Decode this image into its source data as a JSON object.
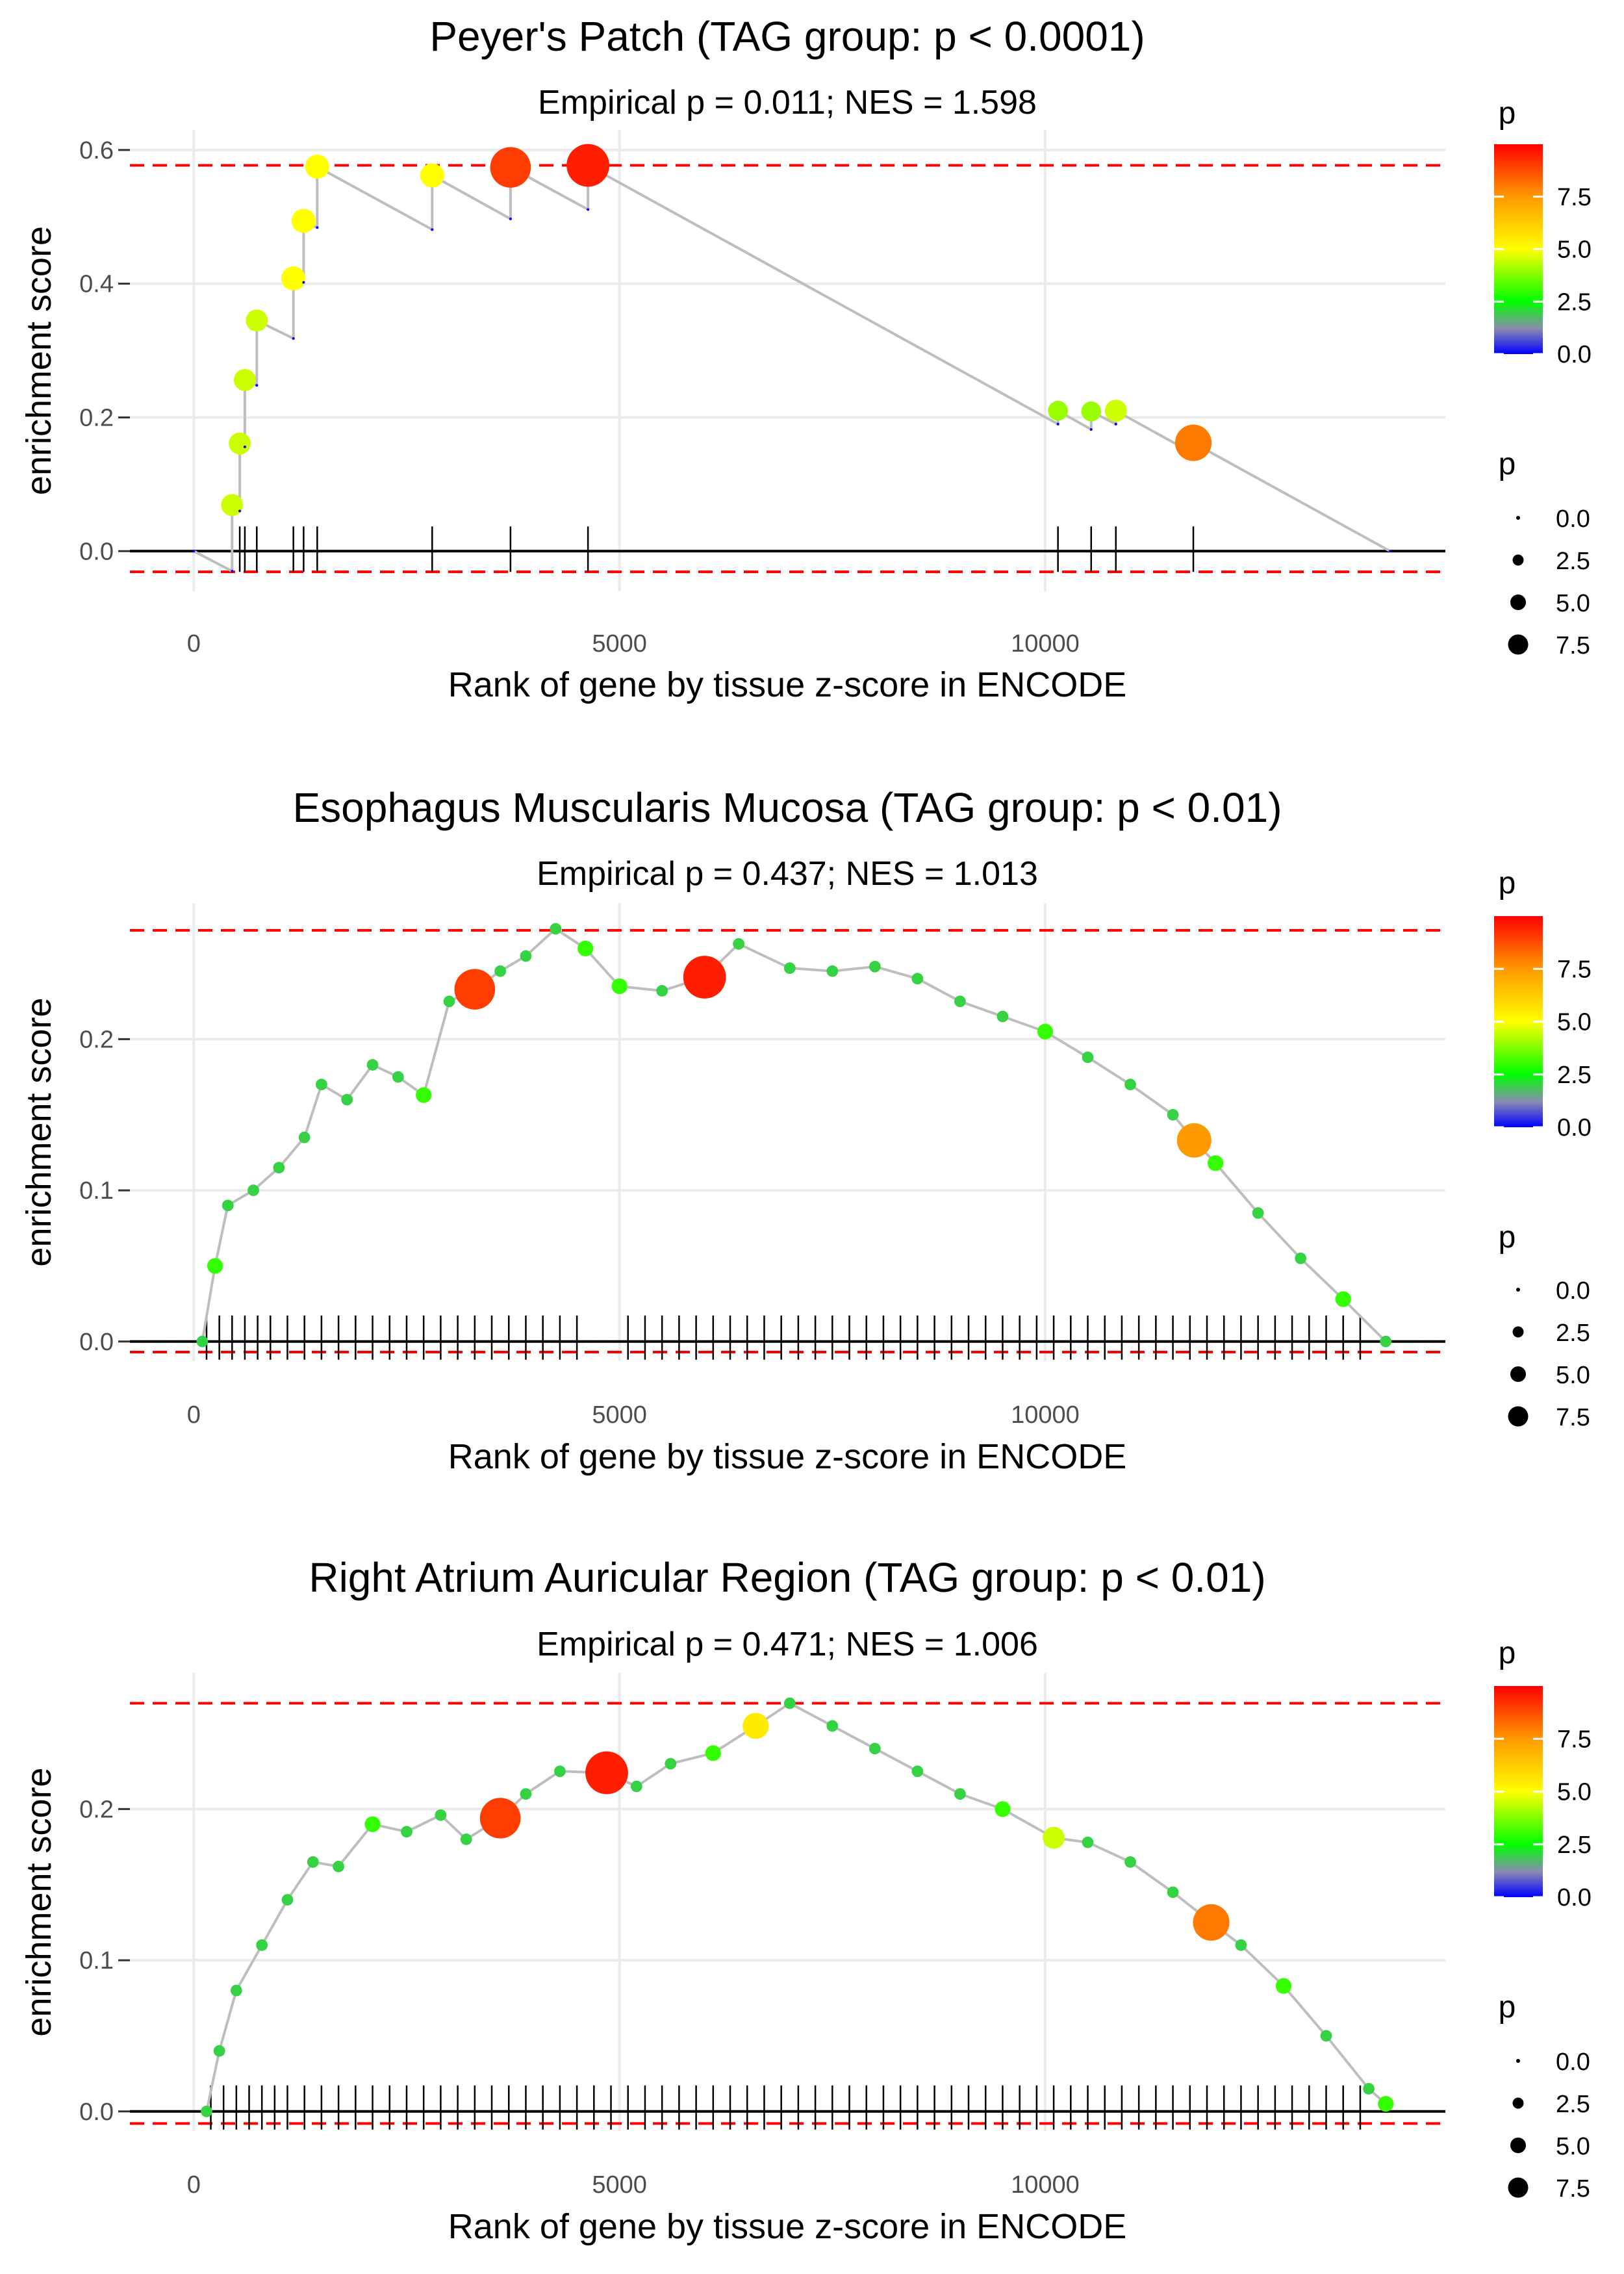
{
  "x_axis_label": "Rank of gene by tissue z-score in ENCODE",
  "y_axis_label": "enrichment score",
  "legend": {
    "color_title": "p",
    "size_title": "p",
    "size_labels": [
      "0.0",
      "2.5",
      "5.0",
      "7.5"
    ],
    "colors": {
      "low": "#0000ff",
      "mid_low": "#8a8ab0",
      "mid": "#00ff00",
      "mid_high": "#ffff00",
      "high_mid": "#ff9900",
      "high": "#ff0000"
    }
  },
  "styles": {
    "line_color": "#bebebe",
    "threshold_color": "#ff0000",
    "barcode_color": "#000000",
    "grid_color": "#ebebeb"
  },
  "chart_data": [
    {
      "type": "line",
      "title": "Peyer's Patch (TAG group: p < 0.0001)",
      "subtitle": "Empirical p = 0.011; NES = 1.598",
      "xlabel": "Rank of gene by tissue z-score in ENCODE",
      "ylabel": "enrichment score",
      "xlim": [
        -750,
        14700
      ],
      "ylim": [
        -0.06,
        0.63
      ],
      "x_ticks": [
        0,
        5000,
        10000
      ],
      "x_tick_labels": [
        "0",
        "5000",
        "10000"
      ],
      "y_ticks": [
        0.0,
        0.2,
        0.4,
        0.6
      ],
      "y_tick_labels": [
        "0.0",
        "0.2",
        "0.4",
        "0.6"
      ],
      "color_ticks": [
        0.0,
        2.5,
        5.0,
        7.5
      ],
      "color_tick_labels": [
        "0.0",
        "2.5",
        "5.0",
        "7.5"
      ],
      "color_max": 10,
      "dense": false,
      "thresholds": [
        0.577,
        -0.031
      ],
      "points": [
        {
          "x": 0,
          "y": 0.0,
          "p": 0
        },
        {
          "x": 450,
          "y": -0.03,
          "p": 0
        },
        {
          "x": 450,
          "y": 0.069,
          "p": 4.5
        },
        {
          "x": 540,
          "y": 0.06,
          "p": 0
        },
        {
          "x": 540,
          "y": 0.161,
          "p": 4.5
        },
        {
          "x": 600,
          "y": 0.156,
          "p": 0
        },
        {
          "x": 600,
          "y": 0.256,
          "p": 4.5
        },
        {
          "x": 740,
          "y": 0.248,
          "p": 0
        },
        {
          "x": 740,
          "y": 0.345,
          "p": 4.5
        },
        {
          "x": 1170,
          "y": 0.318,
          "p": 0
        },
        {
          "x": 1170,
          "y": 0.408,
          "p": 5.0
        },
        {
          "x": 1290,
          "y": 0.402,
          "p": 0
        },
        {
          "x": 1290,
          "y": 0.494,
          "p": 5.0
        },
        {
          "x": 1450,
          "y": 0.484,
          "p": 0
        },
        {
          "x": 1450,
          "y": 0.575,
          "p": 5.0
        },
        {
          "x": 2800,
          "y": 0.481,
          "p": 0
        },
        {
          "x": 2800,
          "y": 0.562,
          "p": 5.0
        },
        {
          "x": 3720,
          "y": 0.497,
          "p": 0
        },
        {
          "x": 3720,
          "y": 0.574,
          "p": 9.0
        },
        {
          "x": 4630,
          "y": 0.511,
          "p": 0
        },
        {
          "x": 4630,
          "y": 0.577,
          "p": 9.5
        },
        {
          "x": 10150,
          "y": 0.19,
          "p": 0
        },
        {
          "x": 10150,
          "y": 0.21,
          "p": 4.0
        },
        {
          "x": 10540,
          "y": 0.182,
          "p": 0
        },
        {
          "x": 10540,
          "y": 0.209,
          "p": 4.0
        },
        {
          "x": 10830,
          "y": 0.19,
          "p": 0
        },
        {
          "x": 10830,
          "y": 0.21,
          "p": 4.5
        },
        {
          "x": 11740,
          "y": 0.146,
          "p": 0
        },
        {
          "x": 11740,
          "y": 0.162,
          "p": 8.0
        },
        {
          "x": 14050,
          "y": 0.0,
          "p": 0
        }
      ],
      "hits": [
        450,
        540,
        600,
        740,
        1170,
        1290,
        1450,
        2800,
        3720,
        4630,
        10150,
        10540,
        10830,
        11740
      ]
    },
    {
      "type": "line",
      "title": "Esophagus Muscularis Mucosa (TAG group: p < 0.01)",
      "subtitle": "Empirical p = 0.437; NES = 1.013",
      "xlabel": "Rank of gene by tissue z-score in ENCODE",
      "ylabel": "enrichment score",
      "xlim": [
        -750,
        14700
      ],
      "ylim": [
        -0.013,
        0.29
      ],
      "x_ticks": [
        0,
        5000,
        10000
      ],
      "x_tick_labels": [
        "0",
        "5000",
        "10000"
      ],
      "y_ticks": [
        0.0,
        0.1,
        0.2
      ],
      "y_tick_labels": [
        "0.0",
        "0.1",
        "0.2"
      ],
      "color_ticks": [
        0.0,
        2.5,
        5.0,
        7.5
      ],
      "color_tick_labels": [
        "0.0",
        "2.5",
        "5.0",
        "7.5"
      ],
      "color_max": 10,
      "dense": true,
      "thresholds": [
        0.272,
        -0.007
      ],
      "points": [
        {
          "x": 100,
          "y": 0.0,
          "p": 2
        },
        {
          "x": 250,
          "y": 0.05,
          "p": 3
        },
        {
          "x": 400,
          "y": 0.09,
          "p": 2
        },
        {
          "x": 700,
          "y": 0.1,
          "p": 2
        },
        {
          "x": 1000,
          "y": 0.115,
          "p": 2
        },
        {
          "x": 1300,
          "y": 0.135,
          "p": 2
        },
        {
          "x": 1500,
          "y": 0.17,
          "p": 2
        },
        {
          "x": 1800,
          "y": 0.16,
          "p": 2
        },
        {
          "x": 2100,
          "y": 0.183,
          "p": 2
        },
        {
          "x": 2400,
          "y": 0.175,
          "p": 2
        },
        {
          "x": 2700,
          "y": 0.163,
          "p": 3
        },
        {
          "x": 3000,
          "y": 0.225,
          "p": 2
        },
        {
          "x": 3300,
          "y": 0.233,
          "p": 9.0
        },
        {
          "x": 3600,
          "y": 0.245,
          "p": 2
        },
        {
          "x": 3900,
          "y": 0.255,
          "p": 2
        },
        {
          "x": 4250,
          "y": 0.273,
          "p": 2
        },
        {
          "x": 4600,
          "y": 0.26,
          "p": 3
        },
        {
          "x": 5000,
          "y": 0.235,
          "p": 3
        },
        {
          "x": 5500,
          "y": 0.232,
          "p": 2
        },
        {
          "x": 6000,
          "y": 0.241,
          "p": 9.5
        },
        {
          "x": 6400,
          "y": 0.263,
          "p": 2
        },
        {
          "x": 7000,
          "y": 0.247,
          "p": 2
        },
        {
          "x": 7500,
          "y": 0.245,
          "p": 2
        },
        {
          "x": 8000,
          "y": 0.248,
          "p": 2
        },
        {
          "x": 8500,
          "y": 0.24,
          "p": 2
        },
        {
          "x": 9000,
          "y": 0.225,
          "p": 2
        },
        {
          "x": 9500,
          "y": 0.215,
          "p": 2
        },
        {
          "x": 10000,
          "y": 0.205,
          "p": 3
        },
        {
          "x": 10500,
          "y": 0.188,
          "p": 2
        },
        {
          "x": 11000,
          "y": 0.17,
          "p": 2
        },
        {
          "x": 11500,
          "y": 0.15,
          "p": 2
        },
        {
          "x": 11750,
          "y": 0.133,
          "p": 7.5
        },
        {
          "x": 12000,
          "y": 0.118,
          "p": 3
        },
        {
          "x": 12500,
          "y": 0.085,
          "p": 2
        },
        {
          "x": 13000,
          "y": 0.055,
          "p": 2
        },
        {
          "x": 13500,
          "y": 0.028,
          "p": 3
        },
        {
          "x": 14000,
          "y": 0.0,
          "p": 2
        }
      ],
      "hits": [
        150,
        300,
        450,
        600,
        750,
        900,
        1100,
        1300,
        1500,
        1700,
        1900,
        2100,
        2300,
        2500,
        2700,
        2900,
        3100,
        3300,
        3500,
        3700,
        3900,
        4100,
        4300,
        4500,
        5100,
        5300,
        5500,
        5700,
        5900,
        6100,
        6300,
        6500,
        6700,
        6900,
        7100,
        7300,
        7500,
        7700,
        7900,
        8100,
        8300,
        8500,
        8700,
        8900,
        9100,
        9300,
        9500,
        9700,
        9900,
        10100,
        10300,
        10500,
        10700,
        10900,
        11100,
        11300,
        11500,
        11700,
        11900,
        12100,
        12300,
        12500,
        12700,
        12900,
        13100,
        13300,
        13500,
        13700
      ]
    },
    {
      "type": "line",
      "title": "Right Atrium Auricular Region (TAG group: p < 0.01)",
      "subtitle": "Empirical p = 0.471; NES = 1.006",
      "xlabel": "Rank of gene by tissue z-score in ENCODE",
      "ylabel": "enrichment score",
      "xlim": [
        -750,
        14700
      ],
      "ylim": [
        -0.013,
        0.29
      ],
      "x_ticks": [
        0,
        5000,
        10000
      ],
      "x_tick_labels": [
        "0",
        "5000",
        "10000"
      ],
      "y_ticks": [
        0.0,
        0.1,
        0.2
      ],
      "y_tick_labels": [
        "0.0",
        "0.1",
        "0.2"
      ],
      "color_ticks": [
        0.0,
        2.5,
        5.0,
        7.5
      ],
      "color_tick_labels": [
        "0.0",
        "2.5",
        "5.0",
        "7.5"
      ],
      "color_max": 10,
      "dense": true,
      "thresholds": [
        0.27,
        -0.008
      ],
      "points": [
        {
          "x": 150,
          "y": 0.0,
          "p": 2
        },
        {
          "x": 300,
          "y": 0.04,
          "p": 2
        },
        {
          "x": 500,
          "y": 0.08,
          "p": 2
        },
        {
          "x": 800,
          "y": 0.11,
          "p": 2
        },
        {
          "x": 1100,
          "y": 0.14,
          "p": 2
        },
        {
          "x": 1400,
          "y": 0.165,
          "p": 2
        },
        {
          "x": 1700,
          "y": 0.162,
          "p": 2
        },
        {
          "x": 2100,
          "y": 0.19,
          "p": 3
        },
        {
          "x": 2500,
          "y": 0.185,
          "p": 2
        },
        {
          "x": 2900,
          "y": 0.196,
          "p": 2
        },
        {
          "x": 3200,
          "y": 0.18,
          "p": 2
        },
        {
          "x": 3600,
          "y": 0.194,
          "p": 9.0
        },
        {
          "x": 3900,
          "y": 0.21,
          "p": 2
        },
        {
          "x": 4300,
          "y": 0.225,
          "p": 2
        },
        {
          "x": 4850,
          "y": 0.224,
          "p": 9.5
        },
        {
          "x": 5200,
          "y": 0.215,
          "p": 2
        },
        {
          "x": 5600,
          "y": 0.23,
          "p": 2
        },
        {
          "x": 6100,
          "y": 0.237,
          "p": 3
        },
        {
          "x": 6600,
          "y": 0.255,
          "p": 5.5
        },
        {
          "x": 7000,
          "y": 0.27,
          "p": 2
        },
        {
          "x": 7500,
          "y": 0.255,
          "p": 2
        },
        {
          "x": 8000,
          "y": 0.24,
          "p": 2
        },
        {
          "x": 8500,
          "y": 0.225,
          "p": 2
        },
        {
          "x": 9000,
          "y": 0.21,
          "p": 2
        },
        {
          "x": 9500,
          "y": 0.2,
          "p": 3
        },
        {
          "x": 10100,
          "y": 0.181,
          "p": 4.5
        },
        {
          "x": 10500,
          "y": 0.178,
          "p": 2
        },
        {
          "x": 11000,
          "y": 0.165,
          "p": 2
        },
        {
          "x": 11500,
          "y": 0.145,
          "p": 2
        },
        {
          "x": 11950,
          "y": 0.125,
          "p": 8.0
        },
        {
          "x": 12300,
          "y": 0.11,
          "p": 2
        },
        {
          "x": 12800,
          "y": 0.083,
          "p": 3
        },
        {
          "x": 13300,
          "y": 0.05,
          "p": 2
        },
        {
          "x": 13800,
          "y": 0.015,
          "p": 2
        },
        {
          "x": 14000,
          "y": 0.005,
          "p": 3
        }
      ],
      "hits": [
        200,
        350,
        500,
        650,
        800,
        950,
        1100,
        1300,
        1500,
        1700,
        1900,
        2100,
        2300,
        2500,
        2700,
        2900,
        3100,
        3300,
        3500,
        3700,
        3900,
        4100,
        4300,
        4500,
        4700,
        4900,
        5100,
        5300,
        5500,
        5700,
        5900,
        6100,
        6300,
        6500,
        6700,
        6900,
        7100,
        7300,
        7500,
        7700,
        7900,
        8100,
        8300,
        8500,
        8700,
        8900,
        9100,
        9300,
        9500,
        9700,
        9900,
        10100,
        10300,
        10500,
        10700,
        10900,
        11100,
        11300,
        11500,
        11700,
        11900,
        12100,
        12300,
        12500,
        12700,
        12900,
        13100,
        13300,
        13500,
        13700
      ]
    }
  ]
}
